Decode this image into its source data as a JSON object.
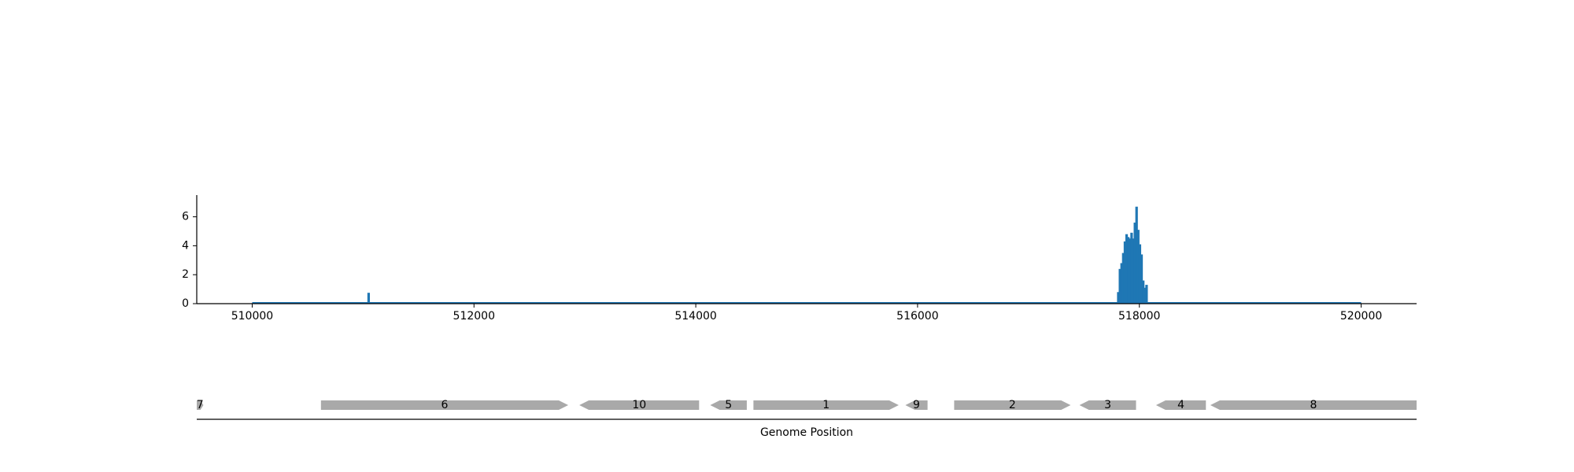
{
  "chart_data": [
    {
      "type": "bar",
      "title": "",
      "xlabel": "",
      "ylabel": "",
      "xlim": [
        509500,
        520500
      ],
      "ylim": [
        0,
        7.5
      ],
      "xticks": [
        510000,
        512000,
        514000,
        516000,
        518000,
        520000
      ],
      "yticks": [
        0,
        2,
        4,
        6
      ],
      "grid": false,
      "color": "#1f77b4",
      "baseline": [
        510000,
        520000
      ],
      "peaks": [
        {
          "x": 511050,
          "y": 0.75
        },
        {
          "x": 517810,
          "y": 0.8
        },
        {
          "x": 517825,
          "y": 2.4
        },
        {
          "x": 517840,
          "y": 2.8
        },
        {
          "x": 517855,
          "y": 3.5
        },
        {
          "x": 517870,
          "y": 4.3
        },
        {
          "x": 517885,
          "y": 4.8
        },
        {
          "x": 517900,
          "y": 4.6
        },
        {
          "x": 517915,
          "y": 4.5
        },
        {
          "x": 517930,
          "y": 4.9
        },
        {
          "x": 517945,
          "y": 4.5
        },
        {
          "x": 517960,
          "y": 5.6
        },
        {
          "x": 517975,
          "y": 6.7
        },
        {
          "x": 517990,
          "y": 5.1
        },
        {
          "x": 518005,
          "y": 4.1
        },
        {
          "x": 518020,
          "y": 3.4
        },
        {
          "x": 518035,
          "y": 1.6
        },
        {
          "x": 518050,
          "y": 1.1
        },
        {
          "x": 518065,
          "y": 1.3
        }
      ]
    },
    {
      "type": "gene-track",
      "xlabel": "Genome Position",
      "xlim": [
        509500,
        520500
      ],
      "color": "#a9a9a9",
      "genes": [
        {
          "label": "7",
          "start": 509500,
          "end": 509560,
          "strand": "+"
        },
        {
          "label": "6",
          "start": 510620,
          "end": 512850,
          "strand": "+"
        },
        {
          "label": "10",
          "start": 512950,
          "end": 514030,
          "strand": "-"
        },
        {
          "label": "5",
          "start": 514130,
          "end": 514460,
          "strand": "-"
        },
        {
          "label": "1",
          "start": 514520,
          "end": 515830,
          "strand": "+"
        },
        {
          "label": "9",
          "start": 515890,
          "end": 516090,
          "strand": "-"
        },
        {
          "label": "2",
          "start": 516330,
          "end": 517380,
          "strand": "+"
        },
        {
          "label": "3",
          "start": 517460,
          "end": 517970,
          "strand": "-"
        },
        {
          "label": "4",
          "start": 518150,
          "end": 518600,
          "strand": "-"
        },
        {
          "label": "8",
          "start": 518640,
          "end": 520500,
          "strand": "-"
        }
      ]
    }
  ]
}
